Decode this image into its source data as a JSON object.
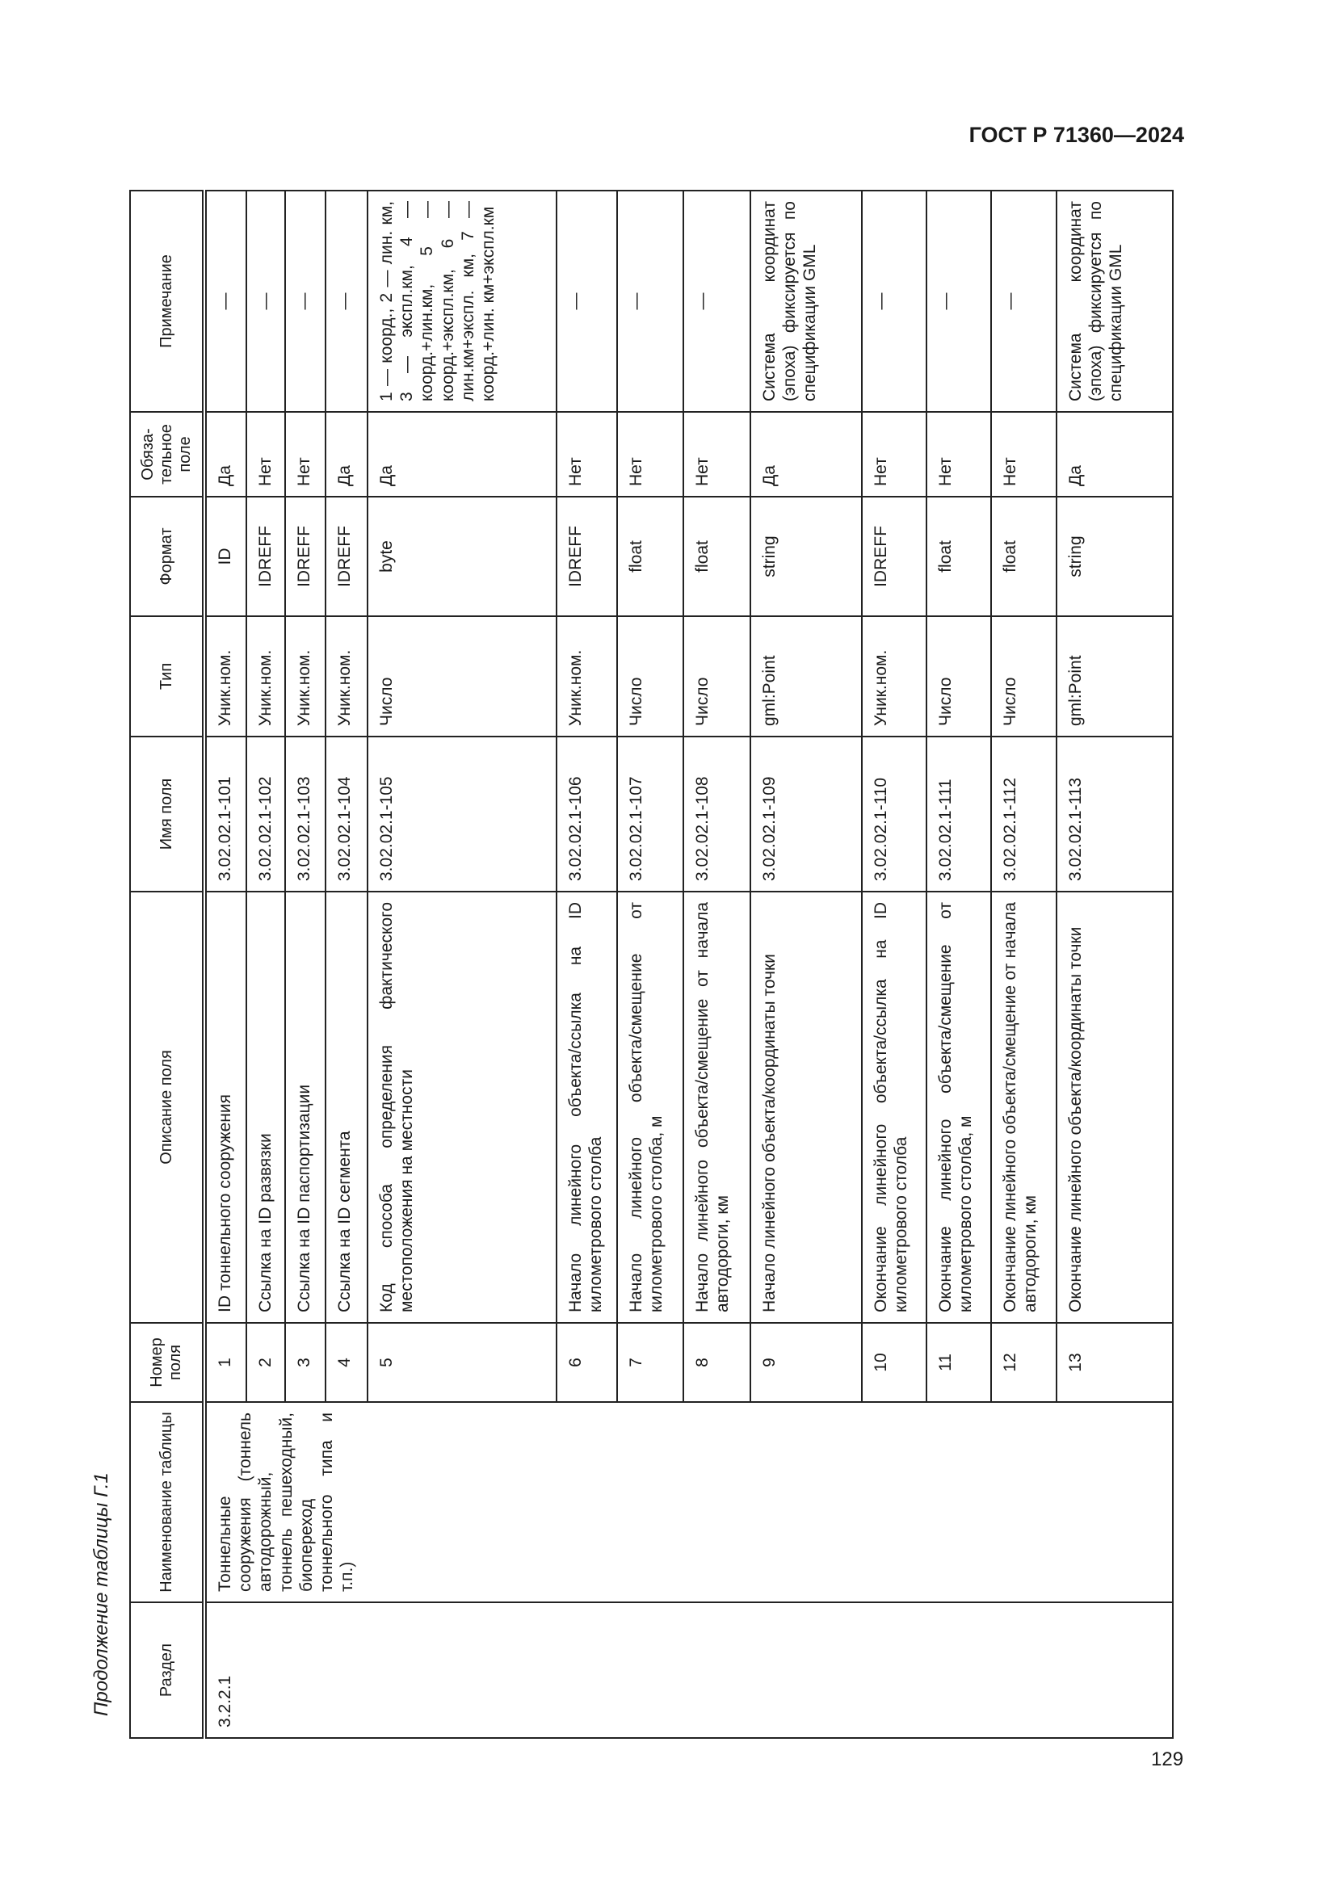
{
  "header": {
    "doc_code": "ГОСТ Р 71360—2024"
  },
  "caption": "Продолжение таблицы Г.1",
  "page_number": "129",
  "table": {
    "columns": [
      "Раздел",
      "Наименование таблицы",
      "Номер поля",
      "Описание поля",
      "Имя поля",
      "Тип",
      "Формат",
      "Обяза-тельное поле",
      "Примечание"
    ],
    "section": "3.2.2.1",
    "table_name": "Тоннельные сооружения (тоннель автодорожный, тоннель пешеходный, биопереход тоннельного типа и т.п.)",
    "rows": [
      {
        "num": "1",
        "desc": "ID тоннельного сооружения",
        "name": "3.02.02.1-101",
        "type": "Уник.ном.",
        "format": "ID",
        "required": "Да",
        "note": "—"
      },
      {
        "num": "2",
        "desc": "Ссылка на ID развязки",
        "name": "3.02.02.1-102",
        "type": "Уник.ном.",
        "format": "IDREFF",
        "required": "Нет",
        "note": "—"
      },
      {
        "num": "3",
        "desc": "Ссылка на ID паспортизации",
        "name": "3.02.02.1-103",
        "type": "Уник.ном.",
        "format": "IDREFF",
        "required": "Нет",
        "note": "—"
      },
      {
        "num": "4",
        "desc": "Ссылка на ID сегмента",
        "name": "3.02.02.1-104",
        "type": "Уник.ном.",
        "format": "IDREFF",
        "required": "Да",
        "note": "—"
      },
      {
        "num": "5",
        "desc": "Код способа определения фактического местоположения на местности",
        "name": "3.02.02.1-105",
        "type": "Число",
        "format": "byte",
        "required": "Да",
        "note": "1 — коорд., 2 — лин. км, 3 — экспл.км, 4 — коорд.+лин.км, 5 — коорд.+экспл.км, 6 — лин.км+экспл. км, 7 — коорд.+лин. км+экспл.км"
      },
      {
        "num": "6",
        "desc": "Начало линейного объекта/ссылка на ID километрового столба",
        "name": "3.02.02.1-106",
        "type": "Уник.ном.",
        "format": "IDREFF",
        "required": "Нет",
        "note": "—"
      },
      {
        "num": "7",
        "desc": "Начало линейного объекта/смещение от километрового столба, м",
        "name": "3.02.02.1-107",
        "type": "Число",
        "format": "float",
        "required": "Нет",
        "note": "—"
      },
      {
        "num": "8",
        "desc": "Начало линейного объекта/смещение от начала автодороги, км",
        "name": "3.02.02.1-108",
        "type": "Число",
        "format": "float",
        "required": "Нет",
        "note": "—"
      },
      {
        "num": "9",
        "desc": "Начало линейного объекта/координаты точки",
        "name": "3.02.02.1-109",
        "type": "gml:Point",
        "format": "string",
        "required": "Да",
        "note": "Система координат (эпоха) фиксируется по спецификации GML"
      },
      {
        "num": "10",
        "desc": "Окончание линейного объекта/ссылка на ID километрового столба",
        "name": "3.02.02.1-110",
        "type": "Уник.ном.",
        "format": "IDREFF",
        "required": "Нет",
        "note": "—"
      },
      {
        "num": "11",
        "desc": "Окончание линейного объекта/смещение от километрового столба, м",
        "name": "3.02.02.1-111",
        "type": "Число",
        "format": "float",
        "required": "Нет",
        "note": "—"
      },
      {
        "num": "12",
        "desc": "Окончание линейного объекта/смещение от начала автодороги, км",
        "name": "3.02.02.1-112",
        "type": "Число",
        "format": "float",
        "required": "Нет",
        "note": "—"
      },
      {
        "num": "13",
        "desc": "Окончание линейного объекта/координаты точки",
        "name": "3.02.02.1-113",
        "type": "gml:Point",
        "format": "string",
        "required": "Да",
        "note": "Система координат (эпоха) фиксируется по спецификации GML"
      }
    ]
  }
}
